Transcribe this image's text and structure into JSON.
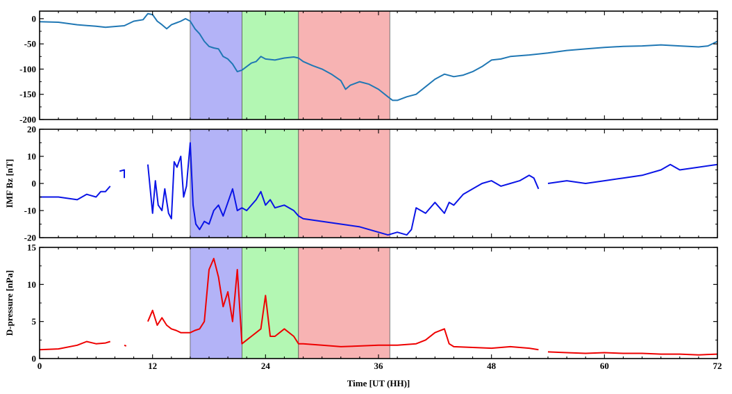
{
  "chart_data": {
    "type": "line",
    "xlabel": "Time [UT (HH)]",
    "xlim": [
      0,
      72
    ],
    "xticks": [
      0,
      12,
      24,
      36,
      48,
      60,
      72
    ],
    "shaded_intervals": [
      {
        "start": 16,
        "end": 21.5,
        "color": "#b3b3f7"
      },
      {
        "start": 21.5,
        "end": 27.5,
        "color": "#b3f7b3"
      },
      {
        "start": 27.5,
        "end": 37.2,
        "color": "#f7b3b3"
      }
    ],
    "panels": [
      {
        "ylabel": "",
        "ylim": [
          -200,
          15
        ],
        "yticks": [
          0,
          -50,
          -100,
          -150,
          -200
        ],
        "series": [
          {
            "color": "#1f77b4",
            "segments": [
              [
                [
                  0,
                  -6
                ],
                [
                  2,
                  -7
                ],
                [
                  4,
                  -12
                ],
                [
                  6,
                  -15
                ],
                [
                  7,
                  -17
                ],
                [
                  9,
                  -14
                ],
                [
                  10,
                  -5
                ],
                [
                  11,
                  -2
                ],
                [
                  11.5,
                  10
                ],
                [
                  12,
                  8
                ],
                [
                  12.5,
                  -5
                ],
                [
                  13,
                  -12
                ],
                [
                  13.5,
                  -20
                ],
                [
                  14,
                  -12
                ],
                [
                  15,
                  -5
                ],
                [
                  15.5,
                  0
                ],
                [
                  16,
                  -5
                ],
                [
                  16.5,
                  -20
                ],
                [
                  17,
                  -30
                ],
                [
                  17.5,
                  -45
                ],
                [
                  18,
                  -55
                ],
                [
                  18.5,
                  -58
                ],
                [
                  19,
                  -60
                ],
                [
                  19.5,
                  -75
                ],
                [
                  20,
                  -80
                ],
                [
                  20.5,
                  -90
                ],
                [
                  21,
                  -105
                ],
                [
                  21.5,
                  -102
                ],
                [
                  22,
                  -95
                ],
                [
                  22.5,
                  -88
                ],
                [
                  23,
                  -85
                ],
                [
                  23.5,
                  -75
                ],
                [
                  24,
                  -80
                ],
                [
                  25,
                  -82
                ],
                [
                  26,
                  -78
                ],
                [
                  27,
                  -76
                ],
                [
                  27.5,
                  -78
                ],
                [
                  28,
                  -85
                ],
                [
                  29,
                  -93
                ],
                [
                  30,
                  -100
                ],
                [
                  31,
                  -110
                ],
                [
                  32,
                  -123
                ],
                [
                  32.5,
                  -140
                ],
                [
                  33,
                  -132
                ],
                [
                  34,
                  -125
                ],
                [
                  35,
                  -130
                ],
                [
                  36,
                  -140
                ],
                [
                  37,
                  -155
                ],
                [
                  37.5,
                  -162
                ],
                [
                  38,
                  -162
                ],
                [
                  39,
                  -155
                ],
                [
                  40,
                  -150
                ],
                [
                  41,
                  -135
                ],
                [
                  42,
                  -120
                ],
                [
                  43,
                  -110
                ],
                [
                  44,
                  -115
                ],
                [
                  45,
                  -112
                ],
                [
                  46,
                  -105
                ],
                [
                  47,
                  -95
                ],
                [
                  48,
                  -82
                ],
                [
                  49,
                  -80
                ],
                [
                  50,
                  -75
                ],
                [
                  52,
                  -72
                ],
                [
                  54,
                  -68
                ],
                [
                  56,
                  -63
                ],
                [
                  58,
                  -60
                ],
                [
                  60,
                  -57
                ],
                [
                  62,
                  -55
                ],
                [
                  64,
                  -54
                ],
                [
                  66,
                  -52
                ],
                [
                  68,
                  -54
                ],
                [
                  70,
                  -56
                ],
                [
                  71,
                  -54
                ],
                [
                  72,
                  -45
                ]
              ]
            ]
          }
        ]
      },
      {
        "ylabel": "IMF Bz [nT]",
        "ylim": [
          -20,
          20
        ],
        "yticks": [
          20,
          10,
          0,
          -10,
          -20
        ],
        "series": [
          {
            "color": "#0a14e6",
            "segments": [
              [
                [
                  0,
                  -5
                ],
                [
                  2,
                  -5
                ],
                [
                  4,
                  -6
                ],
                [
                  5,
                  -4
                ],
                [
                  6,
                  -5
                ],
                [
                  6.5,
                  -3
                ],
                [
                  7,
                  -3
                ],
                [
                  7.5,
                  -1
                ]
              ],
              [
                [
                  8.5,
                  4.5
                ],
                [
                  9,
                  5
                ],
                [
                  9,
                  2
                ]
              ],
              [
                [
                  11.5,
                  7
                ],
                [
                  12,
                  -11
                ],
                [
                  12.3,
                  1
                ],
                [
                  12.6,
                  -8
                ],
                [
                  13,
                  -10
                ],
                [
                  13.3,
                  -2
                ],
                [
                  13.7,
                  -11
                ],
                [
                  14,
                  -13
                ],
                [
                  14.3,
                  8
                ],
                [
                  14.6,
                  6
                ],
                [
                  15,
                  10
                ],
                [
                  15.3,
                  -5
                ],
                [
                  15.6,
                  -1
                ],
                [
                  16,
                  15
                ],
                [
                  16.3,
                  -8
                ],
                [
                  16.6,
                  -15
                ],
                [
                  17,
                  -17
                ],
                [
                  17.5,
                  -14
                ],
                [
                  18,
                  -15
                ],
                [
                  18.5,
                  -10
                ],
                [
                  19,
                  -8
                ],
                [
                  19.5,
                  -12
                ],
                [
                  20,
                  -7
                ],
                [
                  20.5,
                  -2
                ],
                [
                  21,
                  -10
                ],
                [
                  21.5,
                  -9
                ],
                [
                  22,
                  -10
                ],
                [
                  23,
                  -6
                ],
                [
                  23.5,
                  -3
                ],
                [
                  24,
                  -8
                ],
                [
                  24.5,
                  -6
                ],
                [
                  25,
                  -9
                ],
                [
                  26,
                  -8
                ],
                [
                  27,
                  -10
                ],
                [
                  27.5,
                  -12
                ],
                [
                  28,
                  -13
                ],
                [
                  30,
                  -14
                ],
                [
                  32,
                  -15
                ],
                [
                  34,
                  -16
                ],
                [
                  36,
                  -18
                ],
                [
                  37,
                  -19
                ],
                [
                  38,
                  -18
                ],
                [
                  39,
                  -19
                ],
                [
                  39.5,
                  -17
                ],
                [
                  40,
                  -9
                ],
                [
                  41,
                  -11
                ],
                [
                  42,
                  -7
                ],
                [
                  43,
                  -11
                ],
                [
                  43.5,
                  -7
                ],
                [
                  44,
                  -8
                ],
                [
                  45,
                  -4
                ],
                [
                  46,
                  -2
                ],
                [
                  47,
                  0
                ],
                [
                  48,
                  1
                ],
                [
                  49,
                  -1
                ],
                [
                  50,
                  0
                ],
                [
                  51,
                  1
                ],
                [
                  52,
                  3
                ],
                [
                  52.5,
                  2
                ],
                [
                  53,
                  -2
                ]
              ],
              [
                [
                  54,
                  0
                ],
                [
                  56,
                  1
                ],
                [
                  58,
                  0
                ],
                [
                  60,
                  1
                ],
                [
                  62,
                  2
                ],
                [
                  64,
                  3
                ],
                [
                  66,
                  5
                ],
                [
                  67,
                  7
                ],
                [
                  68,
                  5
                ],
                [
                  70,
                  6
                ],
                [
                  72,
                  7
                ]
              ]
            ]
          }
        ]
      },
      {
        "ylabel": "D-pressure [nPa]",
        "ylim": [
          0,
          15
        ],
        "yticks": [
          15,
          10,
          5,
          0
        ],
        "series": [
          {
            "color": "#ee0000",
            "segments": [
              [
                [
                  0,
                  1.2
                ],
                [
                  2,
                  1.3
                ],
                [
                  4,
                  1.8
                ],
                [
                  5,
                  2.3
                ],
                [
                  6,
                  2
                ],
                [
                  7,
                  2.1
                ],
                [
                  7.5,
                  2.3
                ]
              ],
              [
                [
                  9,
                  1.8
                ],
                [
                  9.2,
                  1.7
                ]
              ],
              [
                [
                  11.5,
                  5
                ],
                [
                  12,
                  6.5
                ],
                [
                  12.5,
                  4.5
                ],
                [
                  13,
                  5.5
                ],
                [
                  13.5,
                  4.5
                ],
                [
                  14,
                  4
                ],
                [
                  14.5,
                  3.8
                ],
                [
                  15,
                  3.5
                ],
                [
                  16,
                  3.5
                ],
                [
                  16.5,
                  3.8
                ],
                [
                  17,
                  4
                ],
                [
                  17.5,
                  5
                ],
                [
                  18,
                  12
                ],
                [
                  18.5,
                  13.5
                ],
                [
                  19,
                  11
                ],
                [
                  19.5,
                  7
                ],
                [
                  20,
                  9
                ],
                [
                  20.5,
                  5
                ],
                [
                  21,
                  12
                ],
                [
                  21.5,
                  2
                ],
                [
                  22,
                  2.5
                ],
                [
                  22.5,
                  3
                ],
                [
                  23,
                  3.5
                ],
                [
                  23.5,
                  4
                ],
                [
                  24,
                  8.5
                ],
                [
                  24.5,
                  3
                ],
                [
                  25,
                  3
                ],
                [
                  26,
                  4
                ],
                [
                  27,
                  3
                ],
                [
                  27.5,
                  2
                ],
                [
                  28,
                  2
                ],
                [
                  30,
                  1.8
                ],
                [
                  32,
                  1.6
                ],
                [
                  34,
                  1.7
                ],
                [
                  36,
                  1.8
                ],
                [
                  38,
                  1.8
                ],
                [
                  40,
                  2
                ],
                [
                  41,
                  2.5
                ],
                [
                  42,
                  3.5
                ],
                [
                  43,
                  4
                ],
                [
                  43.5,
                  2
                ],
                [
                  44,
                  1.6
                ],
                [
                  46,
                  1.5
                ],
                [
                  48,
                  1.4
                ],
                [
                  50,
                  1.6
                ],
                [
                  52,
                  1.4
                ],
                [
                  53,
                  1.2
                ]
              ],
              [
                [
                  54,
                  0.9
                ],
                [
                  56,
                  0.8
                ],
                [
                  58,
                  0.7
                ],
                [
                  60,
                  0.8
                ],
                [
                  62,
                  0.7
                ],
                [
                  64,
                  0.7
                ],
                [
                  66,
                  0.6
                ],
                [
                  68,
                  0.6
                ],
                [
                  70,
                  0.5
                ],
                [
                  72,
                  0.6
                ]
              ]
            ]
          }
        ]
      }
    ]
  }
}
